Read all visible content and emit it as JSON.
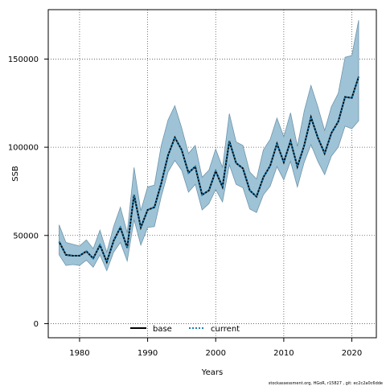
{
  "chart_data": {
    "type": "line",
    "title": "",
    "xlabel": "Years",
    "ylabel": "SSB",
    "xlim": [
      1975.4,
      1027.6
    ],
    "ylim": [
      -8000,
      178000
    ],
    "xticks": [
      1980,
      1990,
      2000,
      2010,
      2020
    ],
    "xtick_labels": [
      "1980",
      "1990",
      "2000",
      "2010",
      "2020"
    ],
    "yticks": [
      0,
      50000,
      100000,
      150000
    ],
    "ytick_labels": [
      "0",
      "50000",
      "100000",
      "150000"
    ],
    "grid": true,
    "legend_position": "bottom-center",
    "colors": {
      "band": "#9ec3d6",
      "band_edge": "#6f95aa",
      "line": "#000000",
      "dots": "#1f7fb4"
    },
    "x": [
      1977,
      1978,
      1979,
      1980,
      1981,
      1982,
      1983,
      1984,
      1985,
      1986,
      1987,
      1988,
      1989,
      1990,
      1991,
      1992,
      1993,
      1994,
      1995,
      1996,
      1997,
      1998,
      1999,
      2000,
      2001,
      2002,
      2003,
      2004,
      2005,
      2006,
      2007,
      2008,
      2009,
      2010,
      2011,
      2012,
      2013,
      2014,
      2015,
      2016,
      2017,
      2018,
      2019,
      2020,
      2021
    ],
    "series": [
      {
        "name": "base",
        "values": [
          46500,
          39000,
          38500,
          38500,
          41000,
          37000,
          44500,
          35000,
          47000,
          54500,
          43000,
          73000,
          54500,
          64500,
          66000,
          79500,
          95500,
          105500,
          98500,
          85500,
          89000,
          73000,
          75500,
          86500,
          77500,
          103500,
          91000,
          88000,
          75500,
          72000,
          83000,
          89500,
          102000,
          91500,
          103500,
          89000,
          101000,
          117000,
          105500,
          96500,
          108000,
          114500,
          128500,
          128000,
          140000
        ],
        "lower": [
          39000,
          33000,
          33500,
          33000,
          36000,
          32000,
          39000,
          30000,
          40500,
          46000,
          35500,
          59000,
          44500,
          54500,
          55000,
          72000,
          86000,
          92500,
          87000,
          74500,
          79000,
          64500,
          68000,
          76000,
          69000,
          90000,
          79000,
          77000,
          65000,
          63000,
          73000,
          78000,
          89000,
          81500,
          92000,
          77500,
          91500,
          101500,
          92000,
          84500,
          95000,
          100000,
          112000,
          110500,
          115000
        ],
        "upper": [
          56000,
          46000,
          45000,
          44000,
          47500,
          42500,
          53000,
          40500,
          55000,
          66000,
          51500,
          88500,
          64000,
          77500,
          78500,
          101000,
          115500,
          123500,
          111000,
          96500,
          101000,
          83000,
          87000,
          99000,
          88500,
          119000,
          103000,
          101000,
          86000,
          82000,
          98500,
          104500,
          116500,
          106000,
          119500,
          100500,
          120500,
          135000,
          123000,
          109500,
          123000,
          130500,
          151000,
          152000,
          172000
        ]
      },
      {
        "name": "current",
        "values": [
          46500,
          39000,
          38500,
          38500,
          41000,
          37000,
          44500,
          35000,
          47000,
          54500,
          43000,
          73000,
          54500,
          64500,
          66000,
          79500,
          95500,
          105500,
          98500,
          85500,
          89000,
          73000,
          75500,
          86500,
          77500,
          103500,
          91000,
          88000,
          75500,
          72000,
          83000,
          89500,
          102000,
          91500,
          103500,
          89000,
          101000,
          117000,
          105500,
          96500,
          108000,
          114500,
          128500,
          128000,
          140000
        ]
      }
    ]
  },
  "footer_text": "stockassessment.org, HGoR, r15827 ,  git: ec2c2a0c6dde"
}
